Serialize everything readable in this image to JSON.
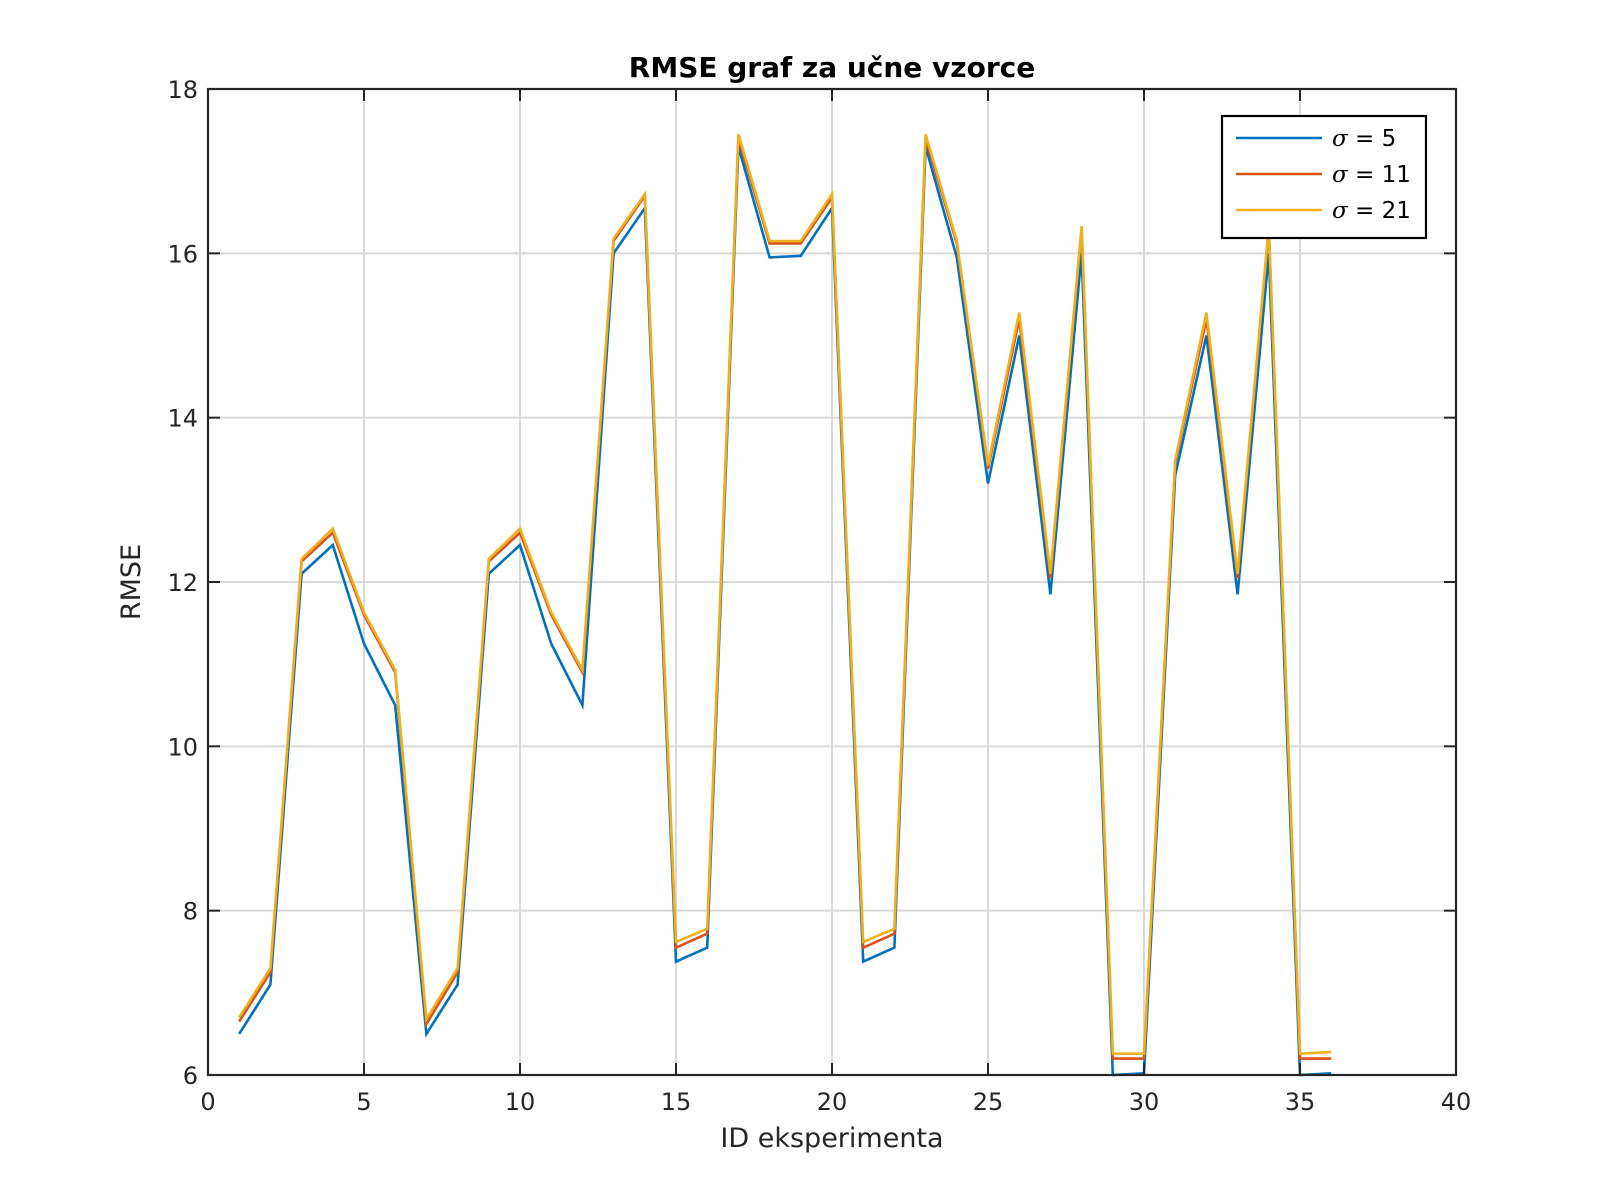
{
  "chart_data": {
    "type": "line",
    "title": "RMSE graf za učne vzorce",
    "xlabel": "ID eksperimenta",
    "ylabel": "RMSE",
    "xlim": [
      0,
      40
    ],
    "ylim": [
      6,
      18
    ],
    "xticks": [
      0,
      5,
      10,
      15,
      20,
      25,
      30,
      35,
      40
    ],
    "yticks": [
      6,
      8,
      10,
      12,
      14,
      16,
      18
    ],
    "grid": true,
    "legend_position": "top-right",
    "x": [
      1,
      2,
      3,
      4,
      5,
      6,
      7,
      8,
      9,
      10,
      11,
      12,
      13,
      14,
      15,
      16,
      17,
      18,
      19,
      20,
      21,
      22,
      23,
      24,
      25,
      26,
      27,
      28,
      29,
      30,
      31,
      32,
      33,
      34,
      35,
      36
    ],
    "series": [
      {
        "symbol": "σ",
        "label_suffix": " = 5",
        "color": "#0072BD",
        "values": [
          6.5,
          7.1,
          12.1,
          12.45,
          11.25,
          10.5,
          6.5,
          7.1,
          12.1,
          12.45,
          11.25,
          10.5,
          16.0,
          16.55,
          7.38,
          7.55,
          17.3,
          15.95,
          15.97,
          16.55,
          7.38,
          7.55,
          17.3,
          15.95,
          13.2,
          15.0,
          11.85,
          16.0,
          6.0,
          6.02,
          13.3,
          15.0,
          11.85,
          16.0,
          6.0,
          6.02
        ]
      },
      {
        "symbol": "σ",
        "label_suffix": " = 11",
        "color": "#D95319",
        "values": [
          6.65,
          7.25,
          12.25,
          12.6,
          11.6,
          10.9,
          6.62,
          7.25,
          12.25,
          12.6,
          11.6,
          10.9,
          16.15,
          16.7,
          7.55,
          7.72,
          17.4,
          16.12,
          16.12,
          16.68,
          7.55,
          7.72,
          17.4,
          16.12,
          13.38,
          15.2,
          12.05,
          16.3,
          6.2,
          6.2,
          13.45,
          15.2,
          12.05,
          16.3,
          6.2,
          6.2
        ]
      },
      {
        "symbol": "σ",
        "label_suffix": " = 21",
        "color": "#EDB120",
        "values": [
          6.7,
          7.3,
          12.28,
          12.65,
          11.63,
          10.93,
          6.68,
          7.3,
          12.28,
          12.65,
          11.63,
          10.93,
          16.18,
          16.72,
          7.62,
          7.78,
          17.45,
          16.15,
          16.15,
          16.72,
          7.62,
          7.78,
          17.45,
          16.15,
          13.42,
          15.28,
          12.1,
          16.33,
          6.26,
          6.26,
          13.48,
          15.28,
          12.1,
          16.33,
          6.26,
          6.28
        ]
      }
    ]
  }
}
